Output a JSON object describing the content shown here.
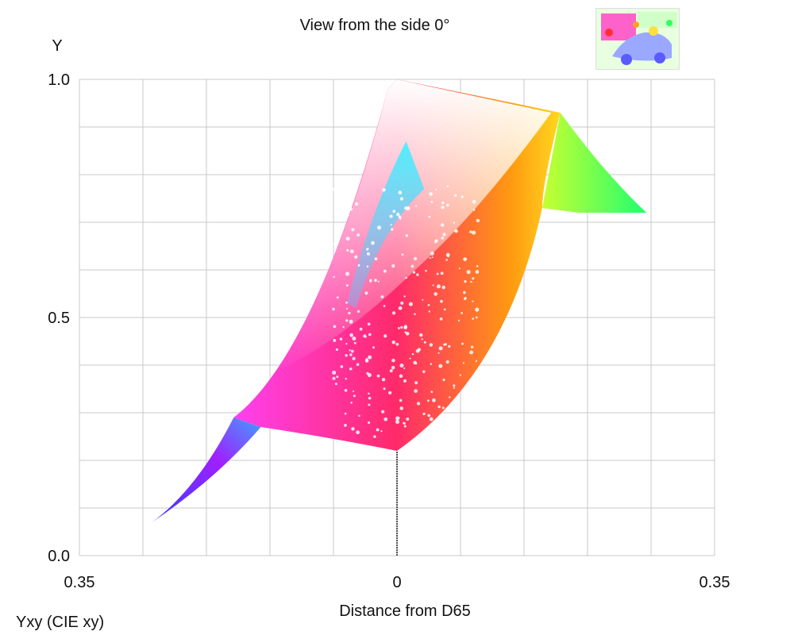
{
  "chart_data": {
    "type": "scatter",
    "title": "View from the side 0°",
    "xlabel": "Distance from D65",
    "ylabel": "Y",
    "corner_label": "Yxy (CIE xy)",
    "xlim": [
      -0.35,
      0.35
    ],
    "ylim": [
      0.0,
      1.0
    ],
    "x_ticks": [
      "0.35",
      "0",
      "0.35"
    ],
    "y_ticks": [
      "0.0",
      "0.5",
      "1.0"
    ],
    "grid": true,
    "gamut_outline": {
      "upper": [
        [
          -0.27,
          0.07
        ],
        [
          -0.18,
          0.29
        ],
        [
          -0.05,
          0.62
        ],
        [
          0.0,
          1.0
        ],
        [
          0.18,
          0.93
        ],
        [
          0.275,
          0.72
        ]
      ],
      "lower": [
        [
          -0.27,
          0.07
        ],
        [
          -0.15,
          0.27
        ],
        [
          0.0,
          0.22
        ],
        [
          0.1,
          0.45
        ],
        [
          0.16,
          0.73
        ],
        [
          0.275,
          0.72
        ]
      ]
    },
    "neutral_axis": {
      "x": 0.0,
      "y_from": 0.0,
      "y_to": 0.22
    },
    "colors": {
      "blue": "#4a3cff",
      "magenta": "#ff20e0",
      "red": "#ff2020",
      "yellow": "#ffff40",
      "green": "#30ff50",
      "cyan": "#40e0ff",
      "white": "#ffffff"
    }
  },
  "thumbnail": {
    "icon": "image-thumbnail-icon"
  }
}
